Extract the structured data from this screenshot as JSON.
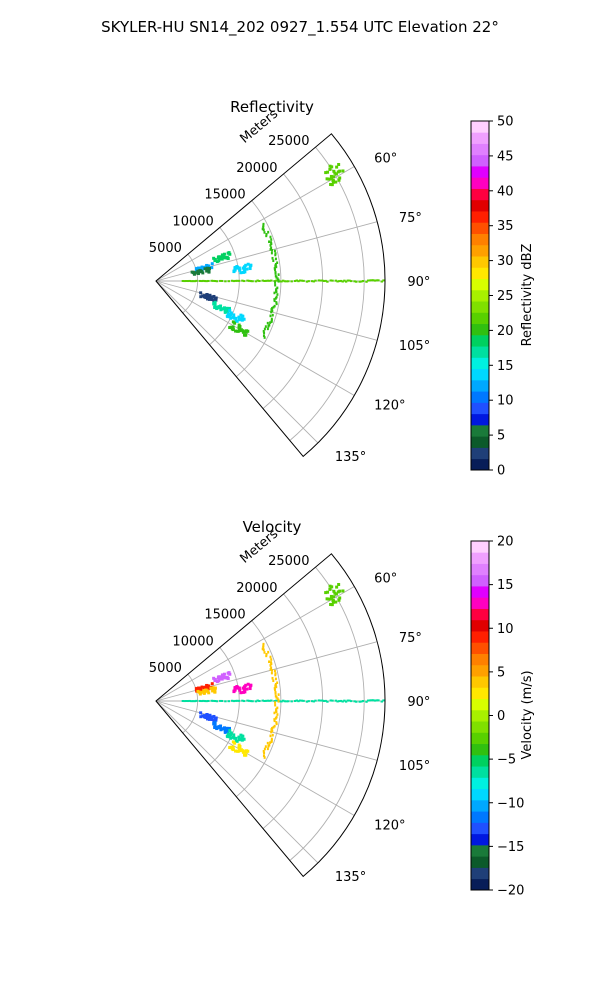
{
  "figure": {
    "suptitle": "SKYLER-HU  SN14_202  0927_1.554 UTC Elevation 22°"
  },
  "chart_data": [
    {
      "type": "polar-sector",
      "title": "Reflectivity",
      "range_label": "Meters",
      "r_ticks": [
        5000,
        10000,
        15000,
        20000,
        25000
      ],
      "r_tick_labels": [
        "5000",
        "10000",
        "15000",
        "20000",
        "25000"
      ],
      "angle_ticks": [
        60,
        75,
        90,
        105,
        120,
        135
      ],
      "angle_tick_labels": [
        "60°",
        "75°",
        "90°",
        "105°",
        "120°",
        "135°"
      ],
      "theta_range": [
        50,
        140
      ],
      "r_max": 27500,
      "grid": true,
      "colorbar": {
        "label": "Reflectivity dBZ",
        "min": 0,
        "max": 50,
        "ticks": [
          0,
          5,
          10,
          15,
          20,
          25,
          30,
          35,
          40,
          45,
          50
        ],
        "tick_labels": [
          "0",
          "5",
          "10",
          "15",
          "20",
          "25",
          "30",
          "35",
          "40",
          "45",
          "50"
        ],
        "colors": [
          "#081d58",
          "#1f3f78",
          "#0c5a2a",
          "#1a7a3a",
          "#0018e0",
          "#2050ff",
          "#0078ff",
          "#00a8ff",
          "#00d8ff",
          "#00f0e0",
          "#00e0a0",
          "#00d060",
          "#30c010",
          "#58d000",
          "#80e000",
          "#a8f000",
          "#d8ff00",
          "#ffe800",
          "#ffc800",
          "#ffa000",
          "#ff8000",
          "#ff5000",
          "#ff2000",
          "#e00000",
          "#ff0040",
          "#ff00c0",
          "#e000ff",
          "#d060ff",
          "#e080ff",
          "#f0a0ff",
          "#ffd0ff"
        ]
      },
      "features": [
        {
          "kind": "ray",
          "theta_deg": 90,
          "r_start": 3000,
          "r_end": 27500,
          "value": 22
        },
        {
          "kind": "arc",
          "r": 14500,
          "theta_start_deg": 62,
          "theta_end_deg": 118,
          "value": 20
        },
        {
          "kind": "blob",
          "r": 8500,
          "theta_deg": 71,
          "value": 18
        },
        {
          "kind": "blob",
          "r": 6000,
          "theta_deg": 75,
          "value": 12
        },
        {
          "kind": "blob",
          "r": 5500,
          "theta_deg": 78,
          "value": 5
        },
        {
          "kind": "blob",
          "r": 10500,
          "theta_deg": 82,
          "value": 13
        },
        {
          "kind": "blob",
          "r": 6500,
          "theta_deg": 107,
          "value": 3
        },
        {
          "kind": "blob",
          "r": 8500,
          "theta_deg": 112,
          "value": 17
        },
        {
          "kind": "blob",
          "r": 10500,
          "theta_deg": 114,
          "value": 14
        },
        {
          "kind": "blob",
          "r": 11500,
          "theta_deg": 120,
          "value": 20
        },
        {
          "kind": "blob",
          "r": 25000,
          "theta_deg": 59,
          "value": 22
        }
      ]
    },
    {
      "type": "polar-sector",
      "title": "Velocity",
      "range_label": "Meters",
      "r_ticks": [
        5000,
        10000,
        15000,
        20000,
        25000
      ],
      "r_tick_labels": [
        "5000",
        "10000",
        "15000",
        "20000",
        "25000"
      ],
      "angle_ticks": [
        60,
        75,
        90,
        105,
        120,
        135
      ],
      "angle_tick_labels": [
        "60°",
        "75°",
        "90°",
        "105°",
        "120°",
        "135°"
      ],
      "theta_range": [
        50,
        140
      ],
      "r_max": 27500,
      "grid": true,
      "colorbar": {
        "label": "Velocity (m/s)",
        "min": -20,
        "max": 20,
        "ticks": [
          -20,
          -15,
          -10,
          -5,
          0,
          5,
          10,
          15,
          20
        ],
        "tick_labels": [
          "−20",
          "−15",
          "−10",
          "−5",
          "0",
          "5",
          "10",
          "15",
          "20"
        ],
        "colors": [
          "#081d58",
          "#1f3f78",
          "#0c5a2a",
          "#1a7a3a",
          "#0018e0",
          "#2050ff",
          "#0078ff",
          "#00a8ff",
          "#00d8ff",
          "#00f0e0",
          "#00e0a0",
          "#00d060",
          "#30c010",
          "#58d000",
          "#80e000",
          "#a8f000",
          "#d8ff00",
          "#ffe800",
          "#ffc800",
          "#ffa000",
          "#ff8000",
          "#ff5000",
          "#ff2000",
          "#e00000",
          "#ff0040",
          "#ff00c0",
          "#e000ff",
          "#d060ff",
          "#e080ff",
          "#f0a0ff",
          "#ffd0ff"
        ]
      },
      "features": [
        {
          "kind": "ray",
          "theta_deg": 90,
          "r_start": 3000,
          "r_end": 27500,
          "value": -6
        },
        {
          "kind": "arc",
          "r": 14500,
          "theta_start_deg": 62,
          "theta_end_deg": 118,
          "value": 4
        },
        {
          "kind": "blob",
          "r": 8500,
          "theta_deg": 71,
          "value": 15
        },
        {
          "kind": "blob",
          "r": 6000,
          "theta_deg": 75,
          "value": 9
        },
        {
          "kind": "blob",
          "r": 6200,
          "theta_deg": 79,
          "value": 4
        },
        {
          "kind": "blob",
          "r": 10500,
          "theta_deg": 82,
          "value": 13
        },
        {
          "kind": "blob",
          "r": 6500,
          "theta_deg": 107,
          "value": -13
        },
        {
          "kind": "blob",
          "r": 8500,
          "theta_deg": 112,
          "value": -12
        },
        {
          "kind": "blob",
          "r": 10500,
          "theta_deg": 114,
          "value": -7
        },
        {
          "kind": "blob",
          "r": 11500,
          "theta_deg": 120,
          "value": 3
        },
        {
          "kind": "blob",
          "r": 25000,
          "theta_deg": 59,
          "value": -3
        }
      ]
    }
  ]
}
